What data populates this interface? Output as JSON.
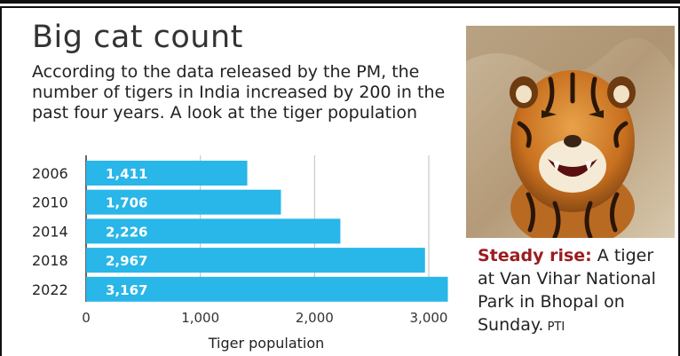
{
  "title": "Big cat count",
  "subtitle": "According to the data released by the PM, the number of tigers in India increased by 200 in the past four years. A look at the tiger population",
  "chart_data": {
    "type": "bar",
    "orientation": "horizontal",
    "categories": [
      "2006",
      "2010",
      "2014",
      "2018",
      "2022"
    ],
    "values": [
      1411,
      1706,
      2226,
      2967,
      3167
    ],
    "value_labels": [
      "1,411",
      "1,706",
      "2,226",
      "2,967",
      "3,167"
    ],
    "xlabel": "Tiger population",
    "xlim": [
      0,
      3000
    ],
    "x_ticks": [
      0,
      1000,
      2000,
      3000
    ],
    "x_tick_labels": [
      "0",
      "1,000",
      "2,000",
      "3,000"
    ],
    "bar_color": "#29b6e8",
    "grid": true
  },
  "caption": {
    "lead": "Steady rise:",
    "text": " A tiger at Van Vihar National Park in Bhopal on Sunday.",
    "credit": " PTI"
  },
  "photo": {
    "subject": "tiger-photo"
  },
  "colors": {
    "accent": "#9b1c1f",
    "bar": "#29b6e8"
  }
}
